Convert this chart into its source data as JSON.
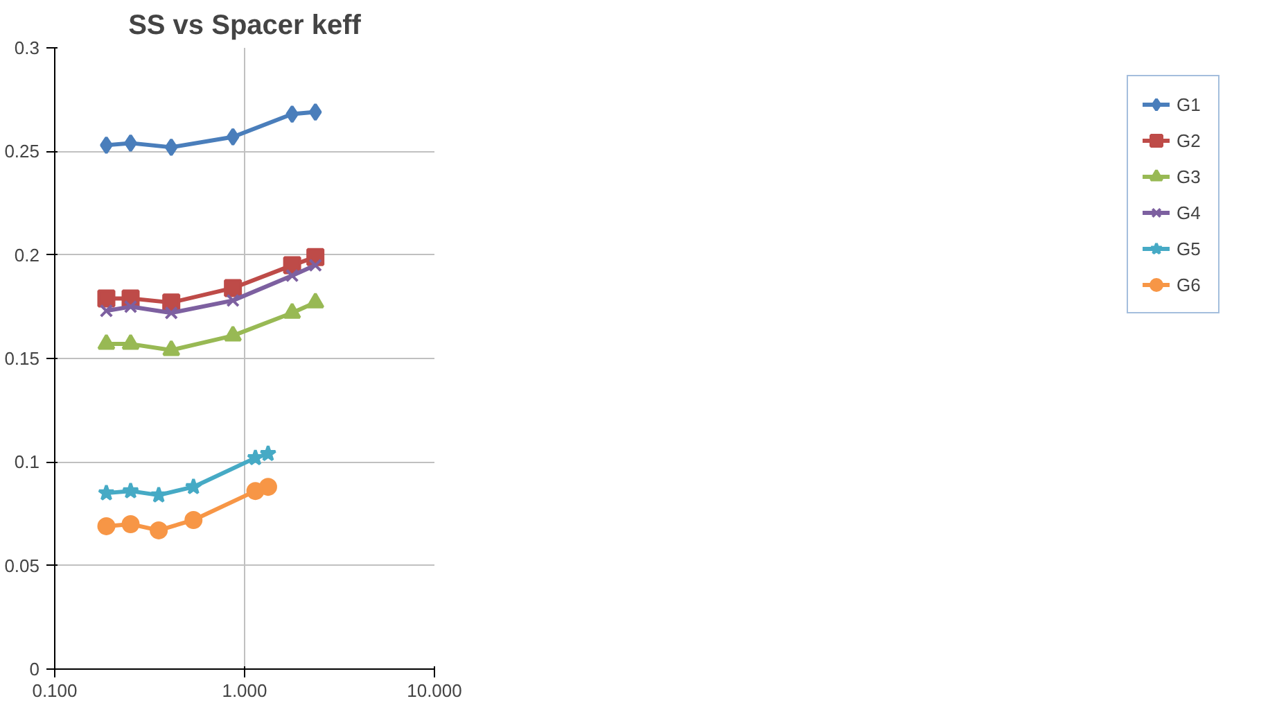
{
  "chart_data": {
    "type": "line",
    "title": "SS vs Spacer keff",
    "log": "x",
    "grid": true,
    "legend": "right",
    "line_style": "solid",
    "xlim": [
      0.1,
      10
    ],
    "xticks": [
      {
        "value": 0.1,
        "label": "0.100"
      },
      {
        "value": 1,
        "label": "1.000"
      },
      {
        "value": 10,
        "label": "10.000"
      }
    ],
    "ylim": [
      0,
      0.3
    ],
    "yticks": [
      0,
      0.05,
      0.1,
      0.15,
      0.2,
      0.25,
      0.3
    ],
    "series": [
      {
        "name": "G1",
        "color": "#4a7ebb",
        "marker": "diamond",
        "x": [
          0.187,
          0.251,
          0.411,
          0.868,
          1.78,
          2.36
        ],
        "values": [
          0.253,
          0.254,
          0.252,
          0.257,
          0.268,
          0.269
        ]
      },
      {
        "name": "G2",
        "color": "#be4b48",
        "marker": "square",
        "x": [
          0.187,
          0.251,
          0.411,
          0.868,
          1.78,
          2.36
        ],
        "values": [
          0.179,
          0.179,
          0.177,
          0.184,
          0.195,
          0.199
        ]
      },
      {
        "name": "G3",
        "color": "#98b954",
        "marker": "triangle",
        "x": [
          0.187,
          0.251,
          0.411,
          0.868,
          1.78,
          2.36
        ],
        "values": [
          0.157,
          0.157,
          0.154,
          0.161,
          0.172,
          0.177
        ]
      },
      {
        "name": "G4",
        "color": "#7d60a0",
        "marker": "cross",
        "x": [
          0.187,
          0.251,
          0.411,
          0.868,
          1.78,
          2.36
        ],
        "values": [
          0.173,
          0.175,
          0.172,
          0.178,
          0.19,
          0.195
        ]
      },
      {
        "name": "G5",
        "color": "#46aac5",
        "marker": "star",
        "x": [
          0.187,
          0.251,
          0.353,
          0.538,
          1.14,
          1.33
        ],
        "values": [
          0.085,
          0.086,
          0.084,
          0.088,
          0.102,
          0.104
        ]
      },
      {
        "name": "G6",
        "color": "#f79646",
        "marker": "circle",
        "x": [
          0.187,
          0.251,
          0.353,
          0.538,
          1.14,
          1.33
        ],
        "values": [
          0.069,
          0.07,
          0.067,
          0.072,
          0.086,
          0.088
        ]
      }
    ]
  }
}
